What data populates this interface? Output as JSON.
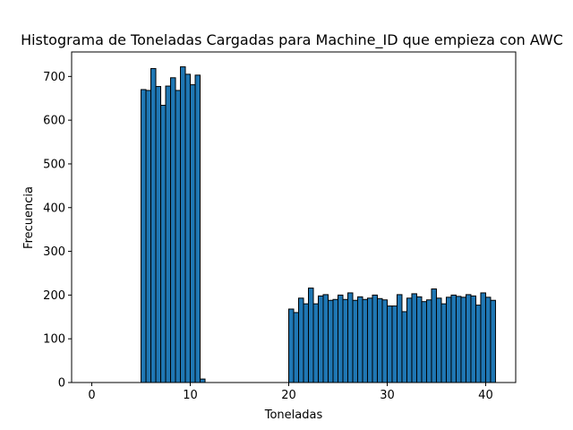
{
  "chart_data": {
    "type": "bar",
    "title": "Histograma de Toneladas Cargadas para Machine_ID que empieza con AWC",
    "xlabel": "Toneladas",
    "ylabel": "Frecuencia",
    "xlim": [
      -2.05,
      43.05
    ],
    "ylim": [
      0,
      756
    ],
    "xticks": [
      0,
      10,
      20,
      30,
      40
    ],
    "yticks": [
      0,
      100,
      200,
      300,
      400,
      500,
      600,
      700
    ],
    "bar_color": "#1f77b4",
    "edge_color": "#000000",
    "grid": false,
    "bin_start": 0,
    "bin_width": 0.5,
    "values": [
      0,
      0,
      0,
      0,
      0,
      0,
      0,
      0,
      0,
      0,
      670,
      668,
      718,
      677,
      634,
      678,
      697,
      668,
      722,
      705,
      681,
      703,
      8,
      0,
      0,
      0,
      0,
      0,
      0,
      0,
      0,
      0,
      0,
      0,
      0,
      0,
      0,
      0,
      0,
      0,
      168,
      160,
      193,
      180,
      216,
      180,
      198,
      201,
      188,
      190,
      200,
      190,
      205,
      188,
      196,
      190,
      193,
      200,
      192,
      189,
      175,
      175,
      201,
      162,
      193,
      203,
      196,
      185,
      189,
      214,
      193,
      180,
      195,
      200,
      197,
      195,
      201,
      198,
      177,
      205,
      195,
      188
    ]
  }
}
